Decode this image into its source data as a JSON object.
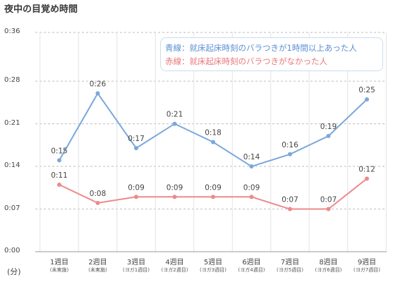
{
  "title": "夜中の目覚め時間",
  "unit_label": "(分)",
  "legend": {
    "blue": "青線：就床起床時刻のバラつきが1時間以上あった人",
    "red": "赤線：就床起床時刻のバラつきがなかった人"
  },
  "chart_data": {
    "type": "line",
    "title": "夜中の目覚め時間",
    "ylabel": "(分)",
    "categories": [
      "1週目",
      "2週目",
      "3週目",
      "4週目",
      "5週目",
      "6週目",
      "7週目",
      "8週目",
      "9週目"
    ],
    "category_notes": [
      "(未実施)",
      "(未実施)",
      "(ヨガ1週目)",
      "(ヨガ2週目)",
      "(ヨガ3週目)",
      "(ヨガ4週目)",
      "(ヨガ5週目)",
      "(ヨガ6週目)",
      "(ヨガ7週目)"
    ],
    "y_ticks": [
      "0:00",
      "0:07",
      "0:14",
      "0:21",
      "0:28",
      "0:36"
    ],
    "y_tick_minutes": [
      0,
      7,
      14,
      21,
      28,
      36
    ],
    "ylim": [
      0,
      36
    ],
    "grid": true,
    "legend_position": "top-right",
    "series": [
      {
        "color": "#7aa8dc",
        "values": [
          15,
          26,
          17,
          21,
          18,
          14,
          16,
          19,
          25
        ],
        "labels": [
          "0:15",
          "0:26",
          "0:17",
          "0:21",
          "0:18",
          "0:14",
          "0:16",
          "0:19",
          "0:25"
        ]
      },
      {
        "color": "#ec8a8c",
        "values": [
          11,
          8,
          9,
          9,
          9,
          9,
          7,
          7,
          12
        ],
        "labels": [
          "0:11",
          "0:08",
          "0:09",
          "0:09",
          "0:09",
          "0:09",
          "0:07",
          "0:07",
          "0:12"
        ]
      }
    ]
  }
}
